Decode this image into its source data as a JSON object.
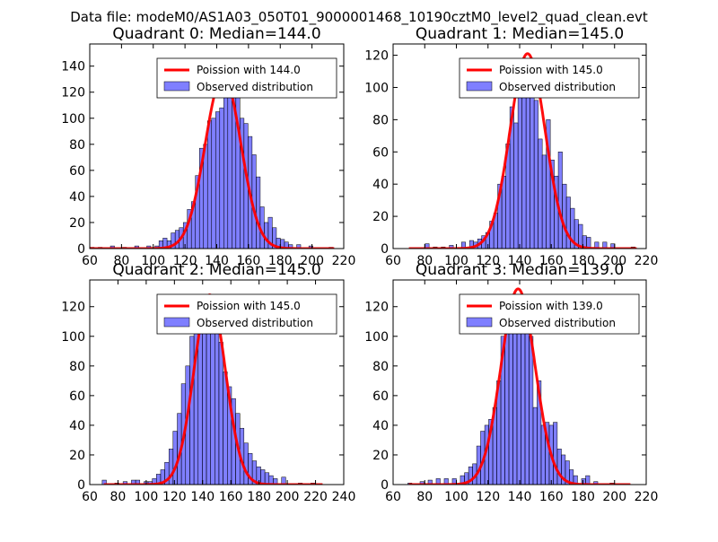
{
  "figure": {
    "suptitle": "Data file: modeM0/AS1A03_050T01_9000001468_10190cztM0_level2_quad_clean.evt",
    "bar_color": "#0000ff",
    "bar_alpha": 0.5,
    "fit_color": "#ff0000"
  },
  "chart_data": [
    {
      "type": "bar+line",
      "title": "Quadrant 0: Median=144.0",
      "median": 144.0,
      "legend": [
        "Poission with 144.0",
        "Observed distribution"
      ],
      "legend_loc": "upper right",
      "xlim": [
        60,
        220
      ],
      "ylim": [
        0,
        157
      ],
      "xticks": [
        60,
        80,
        100,
        120,
        140,
        160,
        180,
        200,
        220
      ],
      "yticks": [
        0,
        20,
        40,
        60,
        80,
        100,
        120,
        140
      ],
      "bin_width": 2.55,
      "bins": [
        [
          61.5,
          1
        ],
        [
          66.6,
          1
        ],
        [
          74.3,
          2
        ],
        [
          81.9,
          1
        ],
        [
          89.6,
          2
        ],
        [
          97.2,
          2
        ],
        [
          102.3,
          2
        ],
        [
          104.9,
          6
        ],
        [
          107.4,
          8
        ],
        [
          110.0,
          6
        ],
        [
          112.5,
          12
        ],
        [
          115.1,
          14
        ],
        [
          117.6,
          16
        ],
        [
          120.2,
          20
        ],
        [
          122.7,
          30
        ],
        [
          125.3,
          36
        ],
        [
          127.8,
          56
        ],
        [
          130.4,
          77
        ],
        [
          132.9,
          80
        ],
        [
          135.5,
          98
        ],
        [
          138.0,
          100
        ],
        [
          140.6,
          105
        ],
        [
          143.1,
          108
        ],
        [
          145.7,
          135
        ],
        [
          148.2,
          142
        ],
        [
          150.8,
          138
        ],
        [
          153.3,
          120
        ],
        [
          155.9,
          100
        ],
        [
          158.4,
          96
        ],
        [
          161.0,
          86
        ],
        [
          163.5,
          72
        ],
        [
          166.1,
          55
        ],
        [
          168.6,
          32
        ],
        [
          171.2,
          20
        ],
        [
          173.7,
          24
        ],
        [
          176.3,
          16
        ],
        [
          178.8,
          8
        ],
        [
          181.4,
          7
        ],
        [
          183.9,
          5
        ],
        [
          186.5,
          3
        ],
        [
          191.6,
          3
        ],
        [
          199.3,
          2
        ],
        [
          212.0,
          1
        ]
      ],
      "fit_peak": 133,
      "fit_sigma": 11.2,
      "fit_x": [
        60,
        214
      ]
    },
    {
      "type": "bar+line",
      "title": "Quadrant 1: Median=145.0",
      "median": 145.0,
      "legend": [
        "Poission with 145.0",
        "Observed distribution"
      ],
      "legend_loc": "upper right",
      "xlim": [
        60,
        220
      ],
      "ylim": [
        0,
        127
      ],
      "xticks": [
        60,
        80,
        100,
        120,
        140,
        160,
        180,
        200,
        220
      ],
      "yticks": [
        0,
        20,
        40,
        60,
        80,
        100,
        120
      ],
      "bin_width": 2.55,
      "bins": [
        [
          81.5,
          3
        ],
        [
          86.6,
          1
        ],
        [
          91.7,
          1
        ],
        [
          96.8,
          2
        ],
        [
          104.5,
          4
        ],
        [
          109.6,
          5
        ],
        [
          112.1,
          4
        ],
        [
          114.7,
          6
        ],
        [
          117.2,
          8
        ],
        [
          119.8,
          10
        ],
        [
          122.3,
          17
        ],
        [
          124.9,
          22
        ],
        [
          127.4,
          40
        ],
        [
          130.0,
          45
        ],
        [
          132.6,
          65
        ],
        [
          135.1,
          88
        ],
        [
          137.7,
          78
        ],
        [
          140.2,
          108
        ],
        [
          142.8,
          110
        ],
        [
          145.3,
          107
        ],
        [
          147.9,
          110
        ],
        [
          150.4,
          92
        ],
        [
          153.0,
          68
        ],
        [
          155.5,
          58
        ],
        [
          158.1,
          80
        ],
        [
          160.6,
          55
        ],
        [
          163.2,
          45
        ],
        [
          165.7,
          60
        ],
        [
          168.3,
          40
        ],
        [
          170.8,
          32
        ],
        [
          173.4,
          25
        ],
        [
          175.9,
          18
        ],
        [
          178.5,
          15
        ],
        [
          181.0,
          8
        ],
        [
          183.6,
          7
        ],
        [
          188.7,
          4
        ],
        [
          193.8,
          4
        ],
        [
          198.9,
          3
        ],
        [
          211.7,
          1
        ]
      ],
      "fit_peak": 121,
      "fit_sigma": 11.1,
      "fit_x": [
        70,
        214
      ]
    },
    {
      "type": "bar+line",
      "title": "Quadrant 2: Median=145.0",
      "median": 145.0,
      "legend": [
        "Poission with 145.0",
        "Observed distribution"
      ],
      "legend_loc": "upper right",
      "xlim": [
        60,
        240
      ],
      "ylim": [
        0,
        138
      ],
      "xticks": [
        60,
        80,
        100,
        120,
        140,
        160,
        180,
        200,
        220,
        240
      ],
      "yticks": [
        0,
        20,
        40,
        60,
        80,
        100,
        120
      ],
      "bin_width": 2.95,
      "bins": [
        [
          70.3,
          3
        ],
        [
          79.2,
          1
        ],
        [
          85.1,
          2
        ],
        [
          91.0,
          3
        ],
        [
          94.0,
          3
        ],
        [
          99.9,
          2
        ],
        [
          102.8,
          2
        ],
        [
          105.8,
          4
        ],
        [
          108.7,
          7
        ],
        [
          111.7,
          10
        ],
        [
          114.6,
          15
        ],
        [
          117.6,
          24
        ],
        [
          120.5,
          36
        ],
        [
          123.5,
          48
        ],
        [
          126.4,
          68
        ],
        [
          129.4,
          80
        ],
        [
          132.4,
          100
        ],
        [
          135.3,
          110
        ],
        [
          138.3,
          116
        ],
        [
          141.2,
          118
        ],
        [
          144.2,
          122
        ],
        [
          147.1,
          118
        ],
        [
          150.1,
          110
        ],
        [
          153.0,
          96
        ],
        [
          156.0,
          76
        ],
        [
          159.0,
          66
        ],
        [
          161.9,
          58
        ],
        [
          164.9,
          48
        ],
        [
          167.8,
          38
        ],
        [
          170.8,
          28
        ],
        [
          173.7,
          21
        ],
        [
          176.7,
          16
        ],
        [
          179.7,
          12
        ],
        [
          182.6,
          10
        ],
        [
          185.6,
          8
        ],
        [
          188.5,
          6
        ],
        [
          191.5,
          4
        ],
        [
          197.4,
          5
        ],
        [
          209.2,
          1
        ],
        [
          218.1,
          1
        ]
      ],
      "fit_peak": 128,
      "fit_sigma": 11.1,
      "fit_x": [
        70,
        225
      ]
    },
    {
      "type": "bar+line",
      "title": "Quadrant 3: Median=139.0",
      "median": 139.0,
      "legend": [
        "Poission with 139.0",
        "Observed distribution"
      ],
      "legend_loc": "upper right",
      "xlim": [
        60,
        220
      ],
      "ylim": [
        0,
        138
      ],
      "xticks": [
        60,
        80,
        100,
        120,
        140,
        160,
        180,
        200,
        220
      ],
      "yticks": [
        0,
        20,
        40,
        60,
        80,
        100,
        120
      ],
      "bin_width": 2.55,
      "bins": [
        [
          70.6,
          1
        ],
        [
          78.3,
          2
        ],
        [
          83.4,
          3
        ],
        [
          88.5,
          4
        ],
        [
          93.6,
          4
        ],
        [
          98.7,
          4
        ],
        [
          103.8,
          6
        ],
        [
          106.4,
          8
        ],
        [
          109.0,
          12
        ],
        [
          111.5,
          14
        ],
        [
          114.1,
          26
        ],
        [
          116.6,
          36
        ],
        [
          119.2,
          40
        ],
        [
          121.7,
          44
        ],
        [
          124.3,
          52
        ],
        [
          126.8,
          70
        ],
        [
          129.4,
          100
        ],
        [
          131.9,
          106
        ],
        [
          134.5,
          108
        ],
        [
          137.0,
          120
        ],
        [
          139.6,
          128
        ],
        [
          142.1,
          126
        ],
        [
          144.7,
          122
        ],
        [
          147.2,
          100
        ],
        [
          149.8,
          52
        ],
        [
          152.3,
          70
        ],
        [
          154.9,
          40
        ],
        [
          157.4,
          42
        ],
        [
          160.0,
          40
        ],
        [
          162.5,
          42
        ],
        [
          165.1,
          24
        ],
        [
          167.6,
          20
        ],
        [
          170.2,
          16
        ],
        [
          172.7,
          10
        ],
        [
          175.3,
          6
        ],
        [
          180.4,
          4
        ],
        [
          183.0,
          6
        ],
        [
          188.1,
          2
        ],
        [
          198.3,
          1
        ]
      ],
      "fit_peak": 132,
      "fit_sigma": 10.8,
      "fit_x": [
        70,
        210
      ]
    }
  ]
}
